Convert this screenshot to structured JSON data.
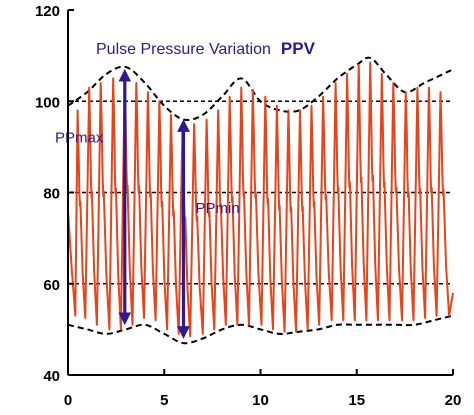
{
  "chart_data": {
    "type": "line",
    "title": "Pulse Pressure Variation",
    "title_bold": "PPV",
    "xlabel": "",
    "ylabel": "",
    "xlim": [
      0,
      20
    ],
    "ylim": [
      40,
      120
    ],
    "x_ticks": [
      "0",
      "5",
      "10",
      "15",
      "20"
    ],
    "y_ticks": [
      "40",
      "60",
      "80",
      "100",
      "120"
    ],
    "gridlines_dashed_y": [
      60,
      80,
      100
    ],
    "series": [
      {
        "color": "#e8431a",
        "style": "pulse waveform",
        "peaks": [
          {
            "x": 0.5,
            "y": 98
          },
          {
            "x": 1.1,
            "y": 103
          },
          {
            "x": 1.7,
            "y": 104
          },
          {
            "x": 2.35,
            "y": 105
          },
          {
            "x": 2.95,
            "y": 105.5
          },
          {
            "x": 3.55,
            "y": 104
          },
          {
            "x": 4.15,
            "y": 102
          },
          {
            "x": 4.75,
            "y": 100
          },
          {
            "x": 5.35,
            "y": 97
          },
          {
            "x": 5.95,
            "y": 95
          },
          {
            "x": 6.55,
            "y": 95
          },
          {
            "x": 7.2,
            "y": 96
          },
          {
            "x": 7.8,
            "y": 98
          },
          {
            "x": 8.4,
            "y": 101
          },
          {
            "x": 9.0,
            "y": 103
          },
          {
            "x": 9.6,
            "y": 102.5
          },
          {
            "x": 10.25,
            "y": 101
          },
          {
            "x": 10.85,
            "y": 99
          },
          {
            "x": 11.45,
            "y": 98
          },
          {
            "x": 12.05,
            "y": 98
          },
          {
            "x": 12.65,
            "y": 99
          },
          {
            "x": 13.25,
            "y": 101
          },
          {
            "x": 13.9,
            "y": 104
          },
          {
            "x": 14.5,
            "y": 106
          },
          {
            "x": 15.1,
            "y": 108
          },
          {
            "x": 15.7,
            "y": 108.5
          },
          {
            "x": 16.3,
            "y": 106
          },
          {
            "x": 16.9,
            "y": 104
          },
          {
            "x": 17.55,
            "y": 102
          },
          {
            "x": 18.15,
            "y": 103
          },
          {
            "x": 18.75,
            "y": 103
          },
          {
            "x": 19.35,
            "y": 102
          }
        ],
        "troughs": [
          {
            "x": 0.9,
            "y": 52.5
          },
          {
            "x": 1.5,
            "y": 51
          },
          {
            "x": 2.15,
            "y": 50
          },
          {
            "x": 2.75,
            "y": 50
          },
          {
            "x": 3.35,
            "y": 51
          },
          {
            "x": 3.95,
            "y": 52.5
          },
          {
            "x": 4.55,
            "y": 52
          },
          {
            "x": 5.15,
            "y": 50
          },
          {
            "x": 5.75,
            "y": 49
          },
          {
            "x": 6.35,
            "y": 48.5
          },
          {
            "x": 7.0,
            "y": 49
          },
          {
            "x": 7.6,
            "y": 50
          },
          {
            "x": 8.2,
            "y": 51
          },
          {
            "x": 8.8,
            "y": 51
          },
          {
            "x": 9.4,
            "y": 51
          },
          {
            "x": 10.05,
            "y": 51
          },
          {
            "x": 10.65,
            "y": 50
          },
          {
            "x": 11.25,
            "y": 49.5
          },
          {
            "x": 11.85,
            "y": 49.5
          },
          {
            "x": 12.45,
            "y": 50
          },
          {
            "x": 13.05,
            "y": 51
          },
          {
            "x": 13.7,
            "y": 52
          },
          {
            "x": 14.3,
            "y": 52
          },
          {
            "x": 14.9,
            "y": 52
          },
          {
            "x": 15.5,
            "y": 52
          },
          {
            "x": 16.1,
            "y": 52
          },
          {
            "x": 16.7,
            "y": 52
          },
          {
            "x": 17.35,
            "y": 52
          },
          {
            "x": 17.95,
            "y": 52
          },
          {
            "x": 18.55,
            "y": 52.5
          },
          {
            "x": 19.15,
            "y": 53
          },
          {
            "x": 19.8,
            "y": 53
          }
        ],
        "end": {
          "x": 20,
          "y": 58
        }
      }
    ],
    "envelopes": {
      "upper": [
        [
          0,
          99
        ],
        [
          1,
          102
        ],
        [
          2,
          106
        ],
        [
          3,
          107.5
        ],
        [
          4,
          104
        ],
        [
          5,
          99
        ],
        [
          6,
          96
        ],
        [
          7,
          97
        ],
        [
          8,
          101
        ],
        [
          9,
          105
        ],
        [
          10,
          100
        ],
        [
          11,
          98
        ],
        [
          12,
          98
        ],
        [
          13,
          101
        ],
        [
          14,
          105
        ],
        [
          15,
          108
        ],
        [
          15.7,
          109.5
        ],
        [
          16.5,
          106
        ],
        [
          17.5,
          102
        ],
        [
          18.5,
          104
        ],
        [
          19.5,
          106
        ],
        [
          20,
          107
        ]
      ],
      "lower": [
        [
          0,
          51
        ],
        [
          1,
          50
        ],
        [
          2,
          49
        ],
        [
          3,
          50
        ],
        [
          4,
          51
        ],
        [
          5,
          49
        ],
        [
          6,
          47
        ],
        [
          7,
          48
        ],
        [
          8,
          50
        ],
        [
          9,
          51
        ],
        [
          10,
          50
        ],
        [
          11,
          49
        ],
        [
          12,
          49.5
        ],
        [
          13,
          50
        ],
        [
          14,
          51
        ],
        [
          15,
          51
        ],
        [
          16,
          51
        ],
        [
          17,
          51
        ],
        [
          18,
          51
        ],
        [
          19,
          52
        ],
        [
          20,
          53
        ]
      ]
    },
    "annotations": [
      {
        "label": "PPmax",
        "x": 2.95,
        "y_top": 107,
        "y_bottom": 51,
        "color": "#2e1a8c"
      },
      {
        "label": "PPmin",
        "x": 6.0,
        "y_top": 96,
        "y_bottom": 48,
        "color": "#2e1a8c"
      }
    ]
  }
}
